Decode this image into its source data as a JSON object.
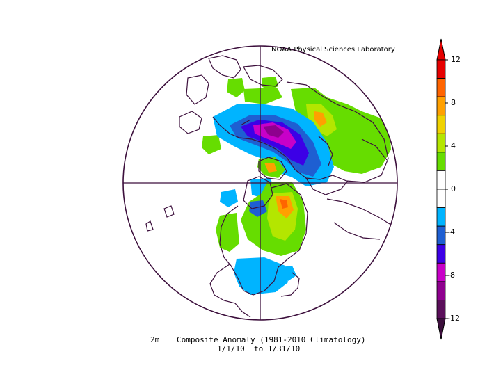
{
  "credit": "NOAA Physical Sciences Laboratory",
  "caption": {
    "variable": "2m",
    "title": "Composite Anomaly (1981-2010 Climatology)",
    "date_range": "1/1/10  to 1/31/10"
  },
  "colorbar": {
    "ticks": [
      "12",
      "8",
      "4",
      "0",
      "-4",
      "-8",
      "-12"
    ],
    "colors": [
      "#b3005f",
      "#8e008e",
      "#c800c8",
      "#3c00e6",
      "#1e5fd2",
      "#00b4ff",
      "#ffffff",
      "#ffffff",
      "#66dd00",
      "#b4e600",
      "#f0d200",
      "#ffa000",
      "#ff6400",
      "#e60000"
    ]
  },
  "anomaly_colors": {
    "strong_cold": "#8e008e",
    "cold_magenta": "#c800c8",
    "cold_blue": "#3c00e6",
    "cool_blue": "#1e5fd2",
    "cool_cyan": "#00b4ff",
    "warm_green": "#66dd00",
    "warm_yellowgreen": "#b4e600",
    "warm_orange": "#ffa000",
    "warm_red": "#ff6400"
  }
}
